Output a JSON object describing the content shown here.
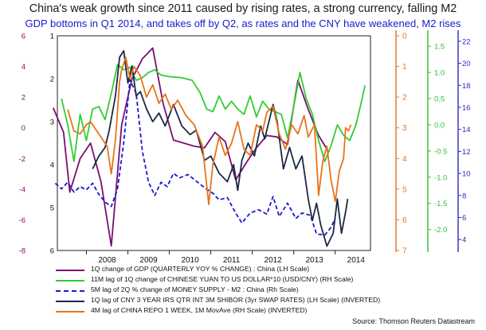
{
  "chart_data": {
    "type": "line",
    "title": "China's weak growth since 2011 caused by rising rates, a strong currency, falling M2",
    "subtitle": "GDP bottoms in Q1 2014, and takes off by Q2, as rates and the CNY have weakened, M2 rises",
    "x_ticks": [
      "2008",
      "2009",
      "2010",
      "2011",
      "2012",
      "2013",
      "2014"
    ],
    "axes": {
      "lh_outer": {
        "ticks": [
          6,
          4,
          2,
          0,
          -2,
          -4,
          -6,
          -8
        ],
        "ylim": [
          -8,
          6
        ],
        "color": "#7a0f70"
      },
      "lh_inverted": {
        "ticks": [
          1,
          2,
          3,
          4,
          5,
          6
        ],
        "ylim": [
          6,
          1
        ],
        "inverted": true,
        "color": "#111111"
      },
      "rh_repo": {
        "ticks": [
          0,
          1,
          2,
          3,
          4,
          5,
          6,
          7
        ],
        "ylim": [
          7,
          0
        ],
        "inverted": true,
        "color": "#e8731a"
      },
      "rh_yuan": {
        "ticks": [
          1.5,
          1.0,
          0.5,
          0.0,
          -0.5,
          -1.0,
          -1.5,
          -2.0
        ],
        "ylim": [
          -2.4,
          1.7
        ],
        "color": "#2fbf2f"
      },
      "rh_m2": {
        "ticks": [
          22,
          20,
          18,
          16,
          14,
          12,
          10,
          8,
          6,
          4
        ],
        "ylim": [
          3,
          22.5
        ],
        "color": "#2b2bc0"
      }
    },
    "series": [
      {
        "name": "1Q change of GDP  (QUARTERLY YOY % CHANGE) : China (LH Scale)",
        "color": "#7a0f70",
        "dash": "",
        "axis": "lh_outer",
        "points": [
          [
            2007.2,
            1.3
          ],
          [
            2007.45,
            -0.3
          ],
          [
            2007.6,
            -4.2
          ],
          [
            2007.85,
            -2.0
          ],
          [
            2008.1,
            -1.0
          ],
          [
            2008.35,
            -3.5
          ],
          [
            2008.6,
            -7.7
          ],
          [
            2008.85,
            0.2
          ],
          [
            2009.1,
            3.2
          ],
          [
            2009.35,
            4.5
          ],
          [
            2009.6,
            5.2
          ],
          [
            2009.85,
            1.6
          ],
          [
            2010.1,
            -0.8
          ],
          [
            2010.35,
            -1.0
          ],
          [
            2010.6,
            -1.2
          ],
          [
            2010.85,
            -1.3
          ],
          [
            2011.1,
            -0.3
          ],
          [
            2011.35,
            -0.9
          ],
          [
            2011.6,
            -3.4
          ],
          [
            2011.85,
            -2.3
          ],
          [
            2012.1,
            -1.3
          ],
          [
            2012.35,
            -0.5
          ],
          [
            2012.6,
            -0.6
          ],
          [
            2012.85,
            -1.1
          ],
          [
            2013.1,
            3.1
          ],
          [
            2013.35,
            1.2
          ],
          [
            2013.6,
            -0.5
          ],
          [
            2013.85,
            -1.6
          ]
        ]
      },
      {
        "name": "11M lag of 1Q change of CHINESE YUAN TO US DOLLAR*10 (USD/CNY) (RH Scale)",
        "color": "#33cc33",
        "dash": "",
        "axis": "rh_yuan",
        "points": [
          [
            2007.4,
            0.5
          ],
          [
            2007.55,
            0.0
          ],
          [
            2007.7,
            -0.7
          ],
          [
            2007.85,
            0.2
          ],
          [
            2008.0,
            -0.3
          ],
          [
            2008.15,
            0.3
          ],
          [
            2008.3,
            0.35
          ],
          [
            2008.45,
            0.1
          ],
          [
            2008.6,
            0.6
          ],
          [
            2008.75,
            1.15
          ],
          [
            2008.9,
            1.05
          ],
          [
            2009.05,
            1.1
          ],
          [
            2009.2,
            0.85
          ],
          [
            2009.35,
            0.9
          ],
          [
            2009.5,
            1.0
          ],
          [
            2009.65,
            1.05
          ],
          [
            2009.8,
            0.95
          ],
          [
            2010.0,
            0.92
          ],
          [
            2010.3,
            0.9
          ],
          [
            2010.55,
            0.85
          ],
          [
            2010.75,
            0.6
          ],
          [
            2010.9,
            0.3
          ],
          [
            2011.05,
            0.25
          ],
          [
            2011.2,
            0.55
          ],
          [
            2011.35,
            0.3
          ],
          [
            2011.5,
            0.45
          ],
          [
            2011.65,
            0.3
          ],
          [
            2011.8,
            0.2
          ],
          [
            2011.95,
            0.55
          ],
          [
            2012.1,
            0.15
          ],
          [
            2012.25,
            0.45
          ],
          [
            2012.4,
            0.3
          ],
          [
            2012.55,
            0.25
          ],
          [
            2012.7,
            0.2
          ],
          [
            2012.85,
            -0.25
          ],
          [
            2013.0,
            0.35
          ],
          [
            2013.15,
            1.0
          ],
          [
            2013.3,
            0.5
          ],
          [
            2013.45,
            0.2
          ],
          [
            2013.6,
            -0.3
          ],
          [
            2013.75,
            -0.7
          ],
          [
            2013.9,
            -0.4
          ],
          [
            2014.05,
            0.0
          ],
          [
            2014.2,
            -0.2
          ],
          [
            2014.35,
            -0.3
          ],
          [
            2014.5,
            0.0
          ],
          [
            2014.62,
            0.4
          ],
          [
            2014.72,
            0.75
          ]
        ]
      },
      {
        "name": "5M lag of 2Q % change of MONEY SUPPLY - M2 : China (Rh Scale)",
        "color": "#1a1ad0",
        "dash": "5,3",
        "axis": "rh_m2",
        "points": [
          [
            2007.25,
            9.1
          ],
          [
            2007.4,
            8.6
          ],
          [
            2007.55,
            9.2
          ],
          [
            2007.7,
            8.3
          ],
          [
            2007.85,
            8.8
          ],
          [
            2008.0,
            8.5
          ],
          [
            2008.15,
            9.1
          ],
          [
            2008.3,
            8.1
          ],
          [
            2008.45,
            7.4
          ],
          [
            2008.6,
            7.0
          ],
          [
            2008.75,
            8.6
          ],
          [
            2008.9,
            12.8
          ],
          [
            2009.05,
            18.5
          ],
          [
            2009.2,
            17.3
          ],
          [
            2009.35,
            12.0
          ],
          [
            2009.5,
            9.2
          ],
          [
            2009.65,
            8.0
          ],
          [
            2009.8,
            9.2
          ],
          [
            2009.95,
            8.8
          ],
          [
            2010.1,
            10.0
          ],
          [
            2010.25,
            9.6
          ],
          [
            2010.45,
            9.9
          ],
          [
            2010.65,
            9.3
          ],
          [
            2010.85,
            8.7
          ],
          [
            2011.05,
            8.2
          ],
          [
            2011.2,
            7.6
          ],
          [
            2011.4,
            7.8
          ],
          [
            2011.6,
            6.4
          ],
          [
            2011.75,
            5.5
          ],
          [
            2011.95,
            6.4
          ],
          [
            2012.15,
            6.7
          ],
          [
            2012.35,
            6.3
          ],
          [
            2012.5,
            7.9
          ],
          [
            2012.65,
            6.1
          ],
          [
            2012.85,
            7.3
          ],
          [
            2013.05,
            5.9
          ],
          [
            2013.2,
            6.4
          ],
          [
            2013.4,
            6.2
          ],
          [
            2013.55,
            4.5
          ],
          [
            2013.75,
            4.4
          ],
          [
            2013.9,
            5.1
          ],
          [
            2014.0,
            5.9
          ]
        ]
      },
      {
        "name": "1Q lag of CNY 3 YEAR IRS QTR INT 3M SHIBOR (3yr SWAP RATES) (LH Scale) (INVERTED)",
        "color": "#1a2a45",
        "dash": "",
        "axis": "lh_inverted",
        "points": [
          [
            2008.15,
            4.1
          ],
          [
            2008.3,
            3.8
          ],
          [
            2008.45,
            3.6
          ],
          [
            2008.55,
            3.2
          ],
          [
            2008.7,
            2.4
          ],
          [
            2008.8,
            1.5
          ],
          [
            2008.9,
            1.35
          ],
          [
            2009.0,
            2.1
          ],
          [
            2009.1,
            1.7
          ],
          [
            2009.2,
            2.4
          ],
          [
            2009.3,
            2.3
          ],
          [
            2009.45,
            2.7
          ],
          [
            2009.6,
            3.0
          ],
          [
            2009.75,
            2.8
          ],
          [
            2009.9,
            3.1
          ],
          [
            2010.1,
            2.6
          ],
          [
            2010.3,
            3.1
          ],
          [
            2010.5,
            3.3
          ],
          [
            2010.65,
            3.2
          ],
          [
            2010.85,
            3.9
          ],
          [
            2011.0,
            3.8
          ],
          [
            2011.2,
            4.2
          ],
          [
            2011.4,
            4.4
          ],
          [
            2011.55,
            4.0
          ],
          [
            2011.65,
            4.6
          ],
          [
            2011.75,
            3.9
          ],
          [
            2011.9,
            3.5
          ],
          [
            2012.05,
            3.8
          ],
          [
            2012.2,
            3.1
          ],
          [
            2012.3,
            3.4
          ],
          [
            2012.4,
            3.0
          ],
          [
            2012.5,
            2.6
          ],
          [
            2012.6,
            3.0
          ],
          [
            2012.75,
            4.1
          ],
          [
            2012.9,
            3.6
          ],
          [
            2013.05,
            4.1
          ],
          [
            2013.2,
            3.8
          ],
          [
            2013.35,
            4.8
          ],
          [
            2013.45,
            5.3
          ],
          [
            2013.55,
            4.9
          ],
          [
            2013.65,
            5.4
          ],
          [
            2013.8,
            5.9
          ],
          [
            2013.95,
            5.6
          ],
          [
            2014.05,
            4.8
          ],
          [
            2014.15,
            5.6
          ],
          [
            2014.25,
            5.1
          ],
          [
            2014.3,
            4.8
          ]
        ]
      },
      {
        "name": "4M lag of CHINA REPO 1 WEEK, 1M MovAve  (RH Scale) (INVERTED)",
        "color": "#e8731a",
        "dash": "",
        "axis": "rh_repo",
        "points": [
          [
            2007.55,
            2.4
          ],
          [
            2007.7,
            3.1
          ],
          [
            2007.85,
            3.2
          ],
          [
            2008.0,
            2.9
          ],
          [
            2008.1,
            2.8
          ],
          [
            2008.2,
            3.0
          ],
          [
            2008.35,
            3.3
          ],
          [
            2008.5,
            3.6
          ],
          [
            2008.6,
            4.5
          ],
          [
            2008.7,
            3.4
          ],
          [
            2008.8,
            1.5
          ],
          [
            2008.85,
            1.1
          ],
          [
            2008.95,
            0.7
          ],
          [
            2009.05,
            1.4
          ],
          [
            2009.15,
            1.0
          ],
          [
            2009.3,
            1.3
          ],
          [
            2009.45,
            2.0
          ],
          [
            2009.6,
            1.6
          ],
          [
            2009.75,
            2.2
          ],
          [
            2009.9,
            1.9
          ],
          [
            2010.05,
            2.4
          ],
          [
            2010.2,
            2.1
          ],
          [
            2010.4,
            2.6
          ],
          [
            2010.6,
            2.9
          ],
          [
            2010.8,
            3.6
          ],
          [
            2010.95,
            5.5
          ],
          [
            2011.05,
            4.2
          ],
          [
            2011.2,
            3.3
          ],
          [
            2011.35,
            3.9
          ],
          [
            2011.5,
            3.5
          ],
          [
            2011.65,
            2.8
          ],
          [
            2011.8,
            3.7
          ],
          [
            2011.95,
            3.9
          ],
          [
            2012.1,
            2.9
          ],
          [
            2012.25,
            3.1
          ],
          [
            2012.35,
            2.5
          ],
          [
            2012.5,
            2.3
          ],
          [
            2012.65,
            3.2
          ],
          [
            2012.8,
            3.7
          ],
          [
            2012.95,
            2.9
          ],
          [
            2013.1,
            3.2
          ],
          [
            2013.25,
            2.6
          ],
          [
            2013.35,
            3.3
          ],
          [
            2013.5,
            2.9
          ],
          [
            2013.6,
            5.2
          ],
          [
            2013.7,
            4.1
          ],
          [
            2013.8,
            3.6
          ],
          [
            2013.9,
            4.7
          ],
          [
            2014.0,
            5.4
          ],
          [
            2014.1,
            4.4
          ],
          [
            2014.2,
            4.0
          ],
          [
            2014.25,
            3.0
          ],
          [
            2014.32,
            3.1
          ],
          [
            2014.38,
            2.9
          ]
        ]
      }
    ],
    "source": "Source: Thomson Reuters Datastream"
  }
}
